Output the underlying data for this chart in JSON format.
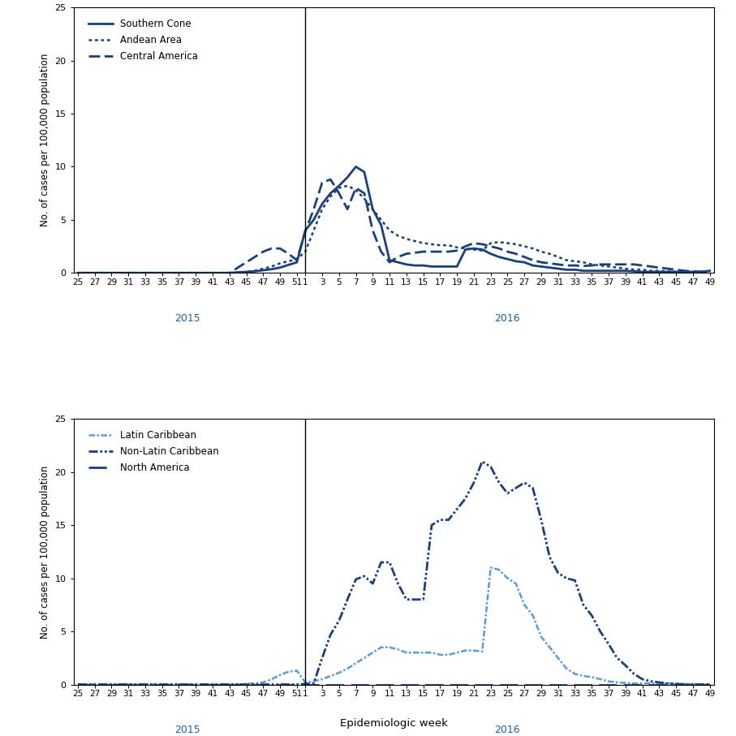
{
  "top_panel": {
    "ylabel": "No. of cases per 100,000 population",
    "ylim": [
      0,
      25
    ],
    "yticks": [
      0,
      5,
      10,
      15,
      20,
      25
    ],
    "series": [
      {
        "label": "Southern Cone",
        "data_2015_weeks": [
          25,
          26,
          27,
          28,
          29,
          30,
          31,
          32,
          33,
          34,
          35,
          36,
          37,
          38,
          39,
          40,
          41,
          42,
          43,
          44,
          45,
          46,
          47,
          48,
          49,
          50,
          51
        ],
        "data_2015_vals": [
          0.0,
          0.0,
          0.0,
          0.0,
          0.0,
          0.0,
          0.0,
          0.0,
          0.0,
          0.0,
          0.0,
          0.0,
          0.0,
          0.0,
          0.0,
          0.0,
          0.0,
          0.0,
          0.0,
          0.05,
          0.1,
          0.15,
          0.25,
          0.35,
          0.5,
          0.75,
          1.0
        ],
        "data_2016_weeks": [
          1,
          2,
          3,
          4,
          5,
          6,
          7,
          8,
          9,
          10,
          11,
          12,
          13,
          14,
          15,
          16,
          17,
          18,
          19,
          20,
          21,
          22,
          23,
          24,
          25,
          26,
          27,
          28,
          29,
          30,
          31,
          32,
          33,
          34,
          35,
          36,
          37,
          38,
          39,
          40,
          41,
          42,
          43,
          44,
          45,
          46,
          47,
          48,
          49
        ],
        "data_2016_vals": [
          4.0,
          5.0,
          6.5,
          7.5,
          8.2,
          9.0,
          10.0,
          9.5,
          6.0,
          4.5,
          1.2,
          1.0,
          0.8,
          0.7,
          0.7,
          0.6,
          0.6,
          0.6,
          0.6,
          2.2,
          2.3,
          2.2,
          1.8,
          1.5,
          1.3,
          1.1,
          1.0,
          0.7,
          0.6,
          0.5,
          0.4,
          0.3,
          0.3,
          0.2,
          0.2,
          0.2,
          0.2,
          0.2,
          0.2,
          0.15,
          0.1,
          0.1,
          0.1,
          0.1,
          0.1,
          0.1,
          0.1,
          0.1,
          0.2
        ]
      },
      {
        "label": "Andean Area",
        "data_2015_weeks": [
          25,
          26,
          27,
          28,
          29,
          30,
          31,
          32,
          33,
          34,
          35,
          36,
          37,
          38,
          39,
          40,
          41,
          42,
          43,
          44,
          45,
          46,
          47,
          48,
          49,
          50,
          51
        ],
        "data_2015_vals": [
          0.0,
          0.0,
          0.0,
          0.0,
          0.0,
          0.0,
          0.0,
          0.0,
          0.0,
          0.0,
          0.0,
          0.0,
          0.0,
          0.0,
          0.0,
          0.0,
          0.0,
          0.0,
          0.0,
          0.05,
          0.1,
          0.2,
          0.4,
          0.6,
          0.9,
          1.1,
          1.3
        ],
        "data_2016_weeks": [
          1,
          2,
          3,
          4,
          5,
          6,
          7,
          8,
          9,
          10,
          11,
          12,
          13,
          14,
          15,
          16,
          17,
          18,
          19,
          20,
          21,
          22,
          23,
          24,
          25,
          26,
          27,
          28,
          29,
          30,
          31,
          32,
          33,
          34,
          35,
          36,
          37,
          38,
          39,
          40,
          41,
          42,
          43,
          44,
          45,
          46,
          47,
          48,
          49
        ],
        "data_2016_vals": [
          2.0,
          4.0,
          6.0,
          7.2,
          8.0,
          8.2,
          7.8,
          7.0,
          6.0,
          5.0,
          4.0,
          3.5,
          3.2,
          3.0,
          2.8,
          2.7,
          2.6,
          2.6,
          2.4,
          2.3,
          2.2,
          2.1,
          2.8,
          2.9,
          2.8,
          2.7,
          2.5,
          2.3,
          2.0,
          1.8,
          1.5,
          1.2,
          1.1,
          1.0,
          0.8,
          0.7,
          0.6,
          0.5,
          0.4,
          0.3,
          0.3,
          0.2,
          0.2,
          0.15,
          0.1,
          0.1,
          0.1,
          0.1,
          0.1
        ]
      },
      {
        "label": "Central America",
        "data_2015_weeks": [
          25,
          26,
          27,
          28,
          29,
          30,
          31,
          32,
          33,
          34,
          35,
          36,
          37,
          38,
          39,
          40,
          41,
          42,
          43,
          44,
          45,
          46,
          47,
          48,
          49,
          50,
          51
        ],
        "data_2015_vals": [
          0.0,
          0.0,
          0.0,
          0.0,
          0.0,
          0.0,
          0.0,
          0.0,
          0.0,
          0.0,
          0.0,
          0.0,
          0.0,
          0.0,
          0.0,
          0.0,
          0.0,
          0.0,
          0.0,
          0.5,
          1.0,
          1.5,
          2.0,
          2.3,
          2.3,
          1.8,
          1.2
        ],
        "data_2016_weeks": [
          1,
          2,
          3,
          4,
          5,
          6,
          7,
          8,
          9,
          10,
          11,
          12,
          13,
          14,
          15,
          16,
          17,
          18,
          19,
          20,
          21,
          22,
          23,
          24,
          25,
          26,
          27,
          28,
          29,
          30,
          31,
          32,
          33,
          34,
          35,
          36,
          37,
          38,
          39,
          40,
          41,
          42,
          43,
          44,
          45,
          46,
          47,
          48,
          49
        ],
        "data_2016_vals": [
          3.9,
          6.0,
          8.5,
          8.8,
          7.5,
          6.0,
          8.0,
          7.5,
          4.0,
          2.0,
          1.0,
          1.5,
          1.8,
          1.9,
          2.0,
          2.0,
          2.0,
          2.0,
          2.1,
          2.5,
          2.8,
          2.7,
          2.5,
          2.3,
          2.0,
          1.8,
          1.5,
          1.2,
          1.0,
          0.9,
          0.8,
          0.7,
          0.7,
          0.65,
          0.7,
          0.8,
          0.8,
          0.8,
          0.8,
          0.8,
          0.7,
          0.6,
          0.5,
          0.4,
          0.3,
          0.2,
          0.15,
          0.1,
          0.1
        ]
      }
    ]
  },
  "bottom_panel": {
    "ylabel": "No. of cases per 100,000 population",
    "xlabel": "Epidemiologic week",
    "ylim": [
      0,
      25
    ],
    "yticks": [
      0,
      5,
      10,
      15,
      20,
      25
    ],
    "series": [
      {
        "label": "Latin Caribbean",
        "data_2015_weeks": [
          25,
          26,
          27,
          28,
          29,
          30,
          31,
          32,
          33,
          34,
          35,
          36,
          37,
          38,
          39,
          40,
          41,
          42,
          43,
          44,
          45,
          46,
          47,
          48,
          49,
          50,
          51
        ],
        "data_2015_vals": [
          0.0,
          0.0,
          0.0,
          0.0,
          0.0,
          0.0,
          0.0,
          0.0,
          0.0,
          0.0,
          0.0,
          0.0,
          0.0,
          0.0,
          0.0,
          0.0,
          0.0,
          0.0,
          0.0,
          0.0,
          0.05,
          0.1,
          0.2,
          0.5,
          0.9,
          1.2,
          1.3
        ],
        "data_2016_weeks": [
          1,
          2,
          3,
          4,
          5,
          6,
          7,
          8,
          9,
          10,
          11,
          12,
          13,
          14,
          15,
          16,
          17,
          18,
          19,
          20,
          21,
          22,
          23,
          24,
          25,
          26,
          27,
          28,
          29,
          30,
          31,
          32,
          33,
          34,
          35,
          36,
          37,
          38,
          39,
          40,
          41,
          42,
          43,
          44,
          45,
          46,
          47,
          48,
          49
        ],
        "data_2016_vals": [
          0.2,
          0.3,
          0.5,
          0.8,
          1.1,
          1.5,
          2.0,
          2.5,
          3.0,
          3.5,
          3.5,
          3.3,
          3.0,
          3.0,
          3.0,
          3.0,
          2.8,
          2.8,
          3.0,
          3.2,
          3.2,
          3.1,
          11.0,
          10.8,
          10.0,
          9.5,
          7.5,
          6.5,
          4.5,
          3.5,
          2.5,
          1.5,
          1.0,
          0.8,
          0.7,
          0.5,
          0.3,
          0.2,
          0.15,
          0.1,
          0.1,
          0.1,
          0.1,
          0.1,
          0.1,
          0.05,
          0.05,
          0.0,
          0.0
        ]
      },
      {
        "label": "Non-Latin Caribbean",
        "data_2015_weeks": [
          25,
          26,
          27,
          28,
          29,
          30,
          31,
          32,
          33,
          34,
          35,
          36,
          37,
          38,
          39,
          40,
          41,
          42,
          43,
          44,
          45,
          46,
          47,
          48,
          49,
          50,
          51
        ],
        "data_2015_vals": [
          0.0,
          0.0,
          0.0,
          0.0,
          0.0,
          0.0,
          0.0,
          0.0,
          0.0,
          0.0,
          0.0,
          0.0,
          0.0,
          0.0,
          0.0,
          0.0,
          0.0,
          0.0,
          0.0,
          0.0,
          0.0,
          0.0,
          0.0,
          0.0,
          0.0,
          0.0,
          0.0
        ],
        "data_2016_weeks": [
          1,
          2,
          3,
          4,
          5,
          6,
          7,
          8,
          9,
          10,
          11,
          12,
          13,
          14,
          15,
          16,
          17,
          18,
          19,
          20,
          21,
          22,
          23,
          24,
          25,
          26,
          27,
          28,
          29,
          30,
          31,
          32,
          33,
          34,
          35,
          36,
          37,
          38,
          39,
          40,
          41,
          42,
          43,
          44,
          45,
          46,
          47,
          48,
          49
        ],
        "data_2016_vals": [
          0.05,
          0.1,
          2.5,
          4.7,
          6.0,
          8.0,
          9.9,
          10.2,
          9.5,
          11.5,
          11.5,
          9.5,
          8.0,
          8.0,
          8.0,
          15.0,
          15.5,
          15.5,
          16.5,
          17.5,
          19.0,
          21.0,
          20.5,
          19.0,
          18.0,
          18.5,
          19.0,
          18.5,
          15.5,
          12.0,
          10.5,
          10.0,
          9.8,
          7.5,
          6.5,
          5.0,
          3.8,
          2.5,
          1.8,
          1.0,
          0.5,
          0.3,
          0.2,
          0.1,
          0.05,
          0.0,
          0.0,
          0.0,
          0.0
        ]
      },
      {
        "label": "North America",
        "data_2015_weeks": [
          25,
          26,
          27,
          28,
          29,
          30,
          31,
          32,
          33,
          34,
          35,
          36,
          37,
          38,
          39,
          40,
          41,
          42,
          43,
          44,
          45,
          46,
          47,
          48,
          49,
          50,
          51
        ],
        "data_2015_vals": [
          0.0,
          0.0,
          0.0,
          0.0,
          0.0,
          0.0,
          0.0,
          0.0,
          0.0,
          0.0,
          0.0,
          0.0,
          0.0,
          0.0,
          0.0,
          0.0,
          0.0,
          0.0,
          0.0,
          0.0,
          0.0,
          0.0,
          0.0,
          0.0,
          0.0,
          0.0,
          0.0
        ],
        "data_2016_weeks": [
          1,
          2,
          3,
          4,
          5,
          6,
          7,
          8,
          9,
          10,
          11,
          12,
          13,
          14,
          15,
          16,
          17,
          18,
          19,
          20,
          21,
          22,
          23,
          24,
          25,
          26,
          27,
          28,
          29,
          30,
          31,
          32,
          33,
          34,
          35,
          36,
          37,
          38,
          39,
          40,
          41,
          42,
          43,
          44,
          45,
          46,
          47,
          48,
          49
        ],
        "data_2016_vals": [
          0.0,
          0.0,
          0.0,
          0.0,
          0.0,
          0.0,
          0.0,
          0.0,
          0.0,
          0.0,
          0.0,
          0.0,
          0.0,
          0.0,
          0.0,
          0.0,
          0.0,
          0.0,
          0.0,
          0.0,
          0.0,
          0.0,
          0.0,
          0.0,
          0.0,
          0.0,
          0.0,
          0.0,
          0.0,
          0.0,
          0.0,
          0.0,
          0.0,
          0.0,
          0.0,
          0.0,
          0.0,
          0.0,
          0.0,
          0.0,
          0.0,
          0.0,
          0.0,
          0.0,
          0.0,
          0.0,
          0.0,
          0.0,
          0.0
        ]
      }
    ]
  },
  "color_dark": "#1a3f7a",
  "color_light": "#5b9bd5",
  "year_label_color": "#2060a0",
  "background_color": "#ffffff",
  "ticks_2015": [
    25,
    27,
    29,
    31,
    33,
    35,
    37,
    39,
    41,
    43,
    45,
    47,
    49,
    51
  ],
  "ticks_2016": [
    1,
    3,
    5,
    7,
    9,
    11,
    13,
    15,
    17,
    19,
    21,
    23,
    25,
    27,
    29,
    31,
    33,
    35,
    37,
    39,
    41,
    43,
    45,
    47,
    49
  ]
}
